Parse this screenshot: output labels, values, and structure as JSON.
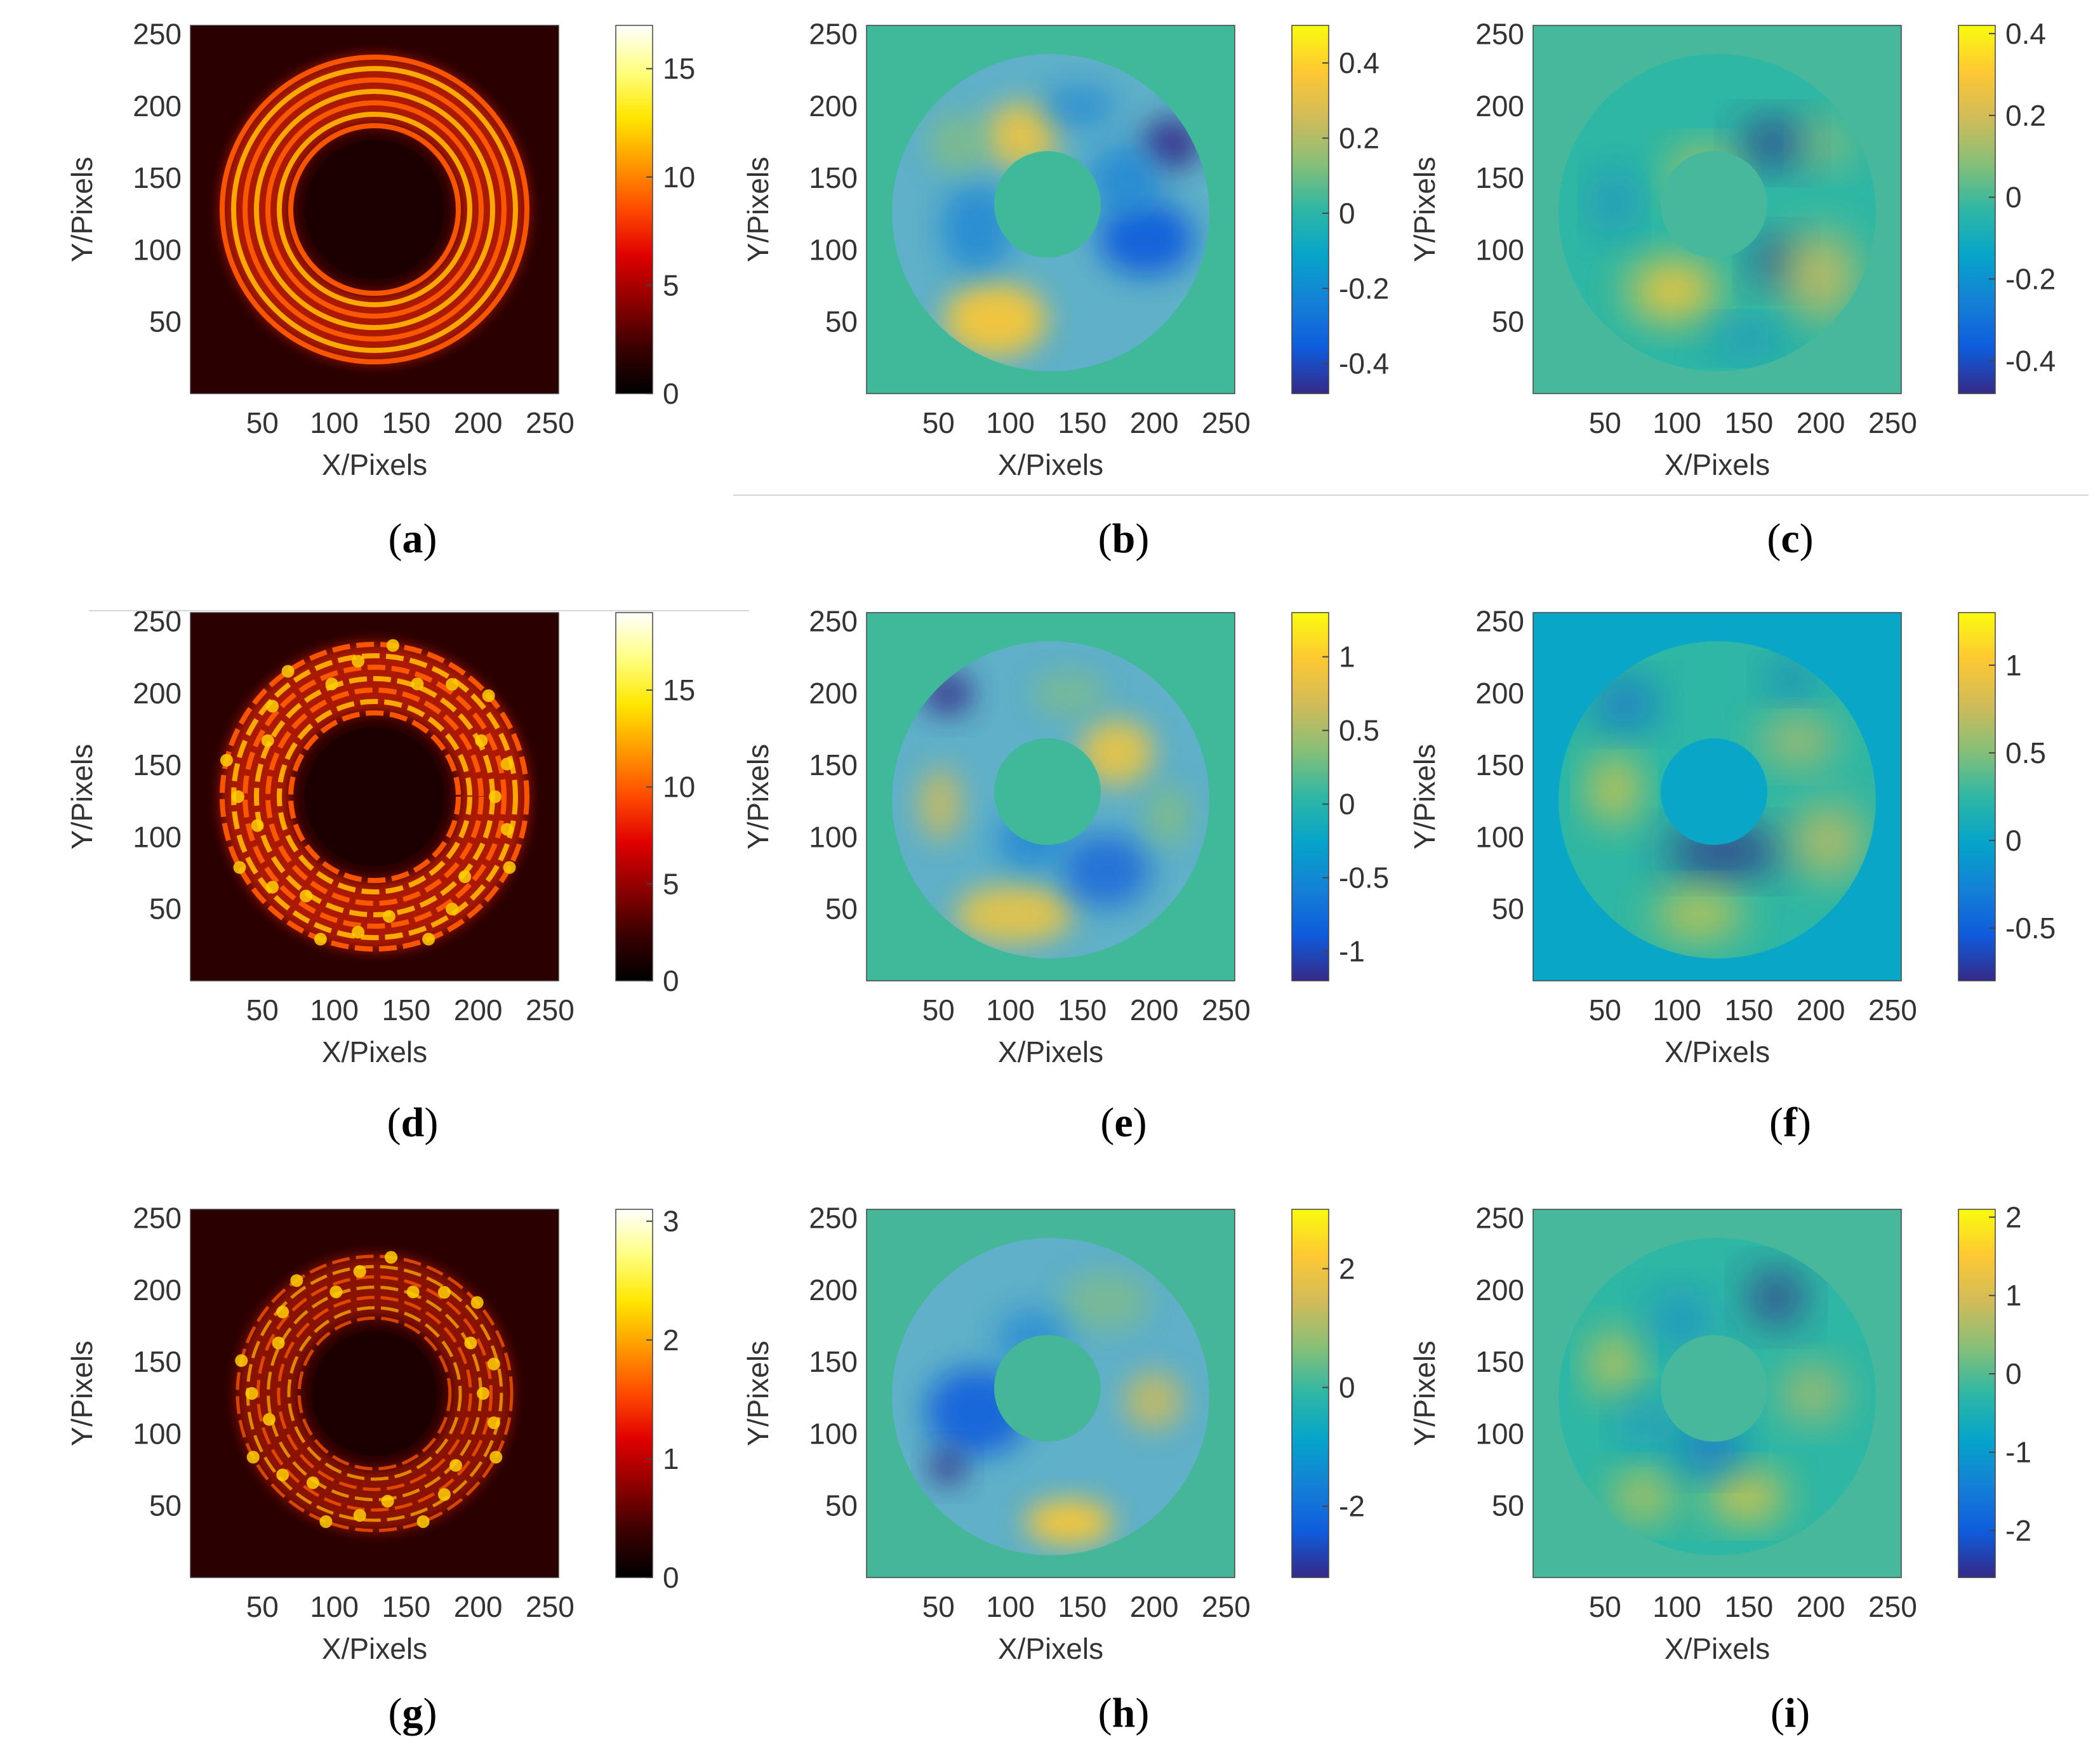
{
  "figure": {
    "axis_labels": {
      "x": "X/Pixels",
      "y": "Y/Pixels"
    }
  },
  "colormaps": {
    "hot": [
      "#000000",
      "#3a0000",
      "#8e0000",
      "#e00000",
      "#ff4a00",
      "#ff9a00",
      "#ffe600",
      "#ffff80",
      "#ffffff"
    ],
    "parula": [
      "#352a87",
      "#0f5cdd",
      "#1481d6",
      "#06a4ca",
      "#2eb7a4",
      "#87bf77",
      "#d1bb59",
      "#fec832",
      "#f9fb0e"
    ]
  },
  "chart_data": [
    {
      "id": "a",
      "type": "heatmap",
      "label_open": "(",
      "label_letter": "a",
      "label_close": ")",
      "pattern": "rings",
      "colormap": "hot",
      "xlabel": "X/Pixels",
      "ylabel": "Y/Pixels",
      "xlim": [
        0,
        256
      ],
      "ylim": [
        0,
        256
      ],
      "xticks": [
        "50",
        "100",
        "150",
        "200",
        "250"
      ],
      "yticks": [
        "50",
        "100",
        "150",
        "200",
        "250"
      ],
      "clim": [
        0,
        17
      ],
      "colorbar_ticks": [
        "0",
        "5",
        "10",
        "15"
      ]
    },
    {
      "id": "b",
      "type": "heatmap",
      "label_open": "(",
      "label_letter": "b",
      "label_close": ")",
      "pattern": "annulus-turbulent",
      "colormap": "parula",
      "xlabel": "X/Pixels",
      "ylabel": "Y/Pixels",
      "xlim": [
        0,
        256
      ],
      "ylim": [
        0,
        256
      ],
      "xticks": [
        "50",
        "100",
        "150",
        "200",
        "250"
      ],
      "yticks": [
        "50",
        "100",
        "150",
        "200",
        "250"
      ],
      "clim": [
        -0.48,
        0.5
      ],
      "colorbar_ticks": [
        "-0.4",
        "-0.2",
        "0",
        "0.2",
        "0.4"
      ]
    },
    {
      "id": "c",
      "type": "heatmap",
      "label_open": "(",
      "label_letter": "c",
      "label_close": ")",
      "pattern": "annulus-smooth",
      "colormap": "parula",
      "xlabel": "X/Pixels",
      "ylabel": "Y/Pixels",
      "xlim": [
        0,
        256
      ],
      "ylim": [
        0,
        256
      ],
      "xticks": [
        "50",
        "100",
        "150",
        "200",
        "250"
      ],
      "yticks": [
        "50",
        "100",
        "150",
        "200",
        "250"
      ],
      "clim": [
        -0.48,
        0.42
      ],
      "colorbar_ticks": [
        "-0.4",
        "-0.2",
        "0",
        "0.2",
        "0.4"
      ]
    },
    {
      "id": "d",
      "type": "heatmap",
      "label_open": "(",
      "label_letter": "d",
      "label_close": ")",
      "pattern": "rings",
      "colormap": "hot",
      "xlabel": "X/Pixels",
      "ylabel": "Y/Pixels",
      "xlim": [
        0,
        256
      ],
      "ylim": [
        0,
        256
      ],
      "xticks": [
        "50",
        "100",
        "150",
        "200",
        "250"
      ],
      "yticks": [
        "50",
        "100",
        "150",
        "200",
        "250"
      ],
      "clim": [
        0,
        19
      ],
      "colorbar_ticks": [
        "0",
        "5",
        "10",
        "15"
      ]
    },
    {
      "id": "e",
      "type": "heatmap",
      "label_open": "(",
      "label_letter": "e",
      "label_close": ")",
      "pattern": "annulus-turbulent",
      "colormap": "parula",
      "xlabel": "X/Pixels",
      "ylabel": "Y/Pixels",
      "xlim": [
        0,
        256
      ],
      "ylim": [
        0,
        256
      ],
      "xticks": [
        "50",
        "100",
        "150",
        "200",
        "250"
      ],
      "yticks": [
        "50",
        "100",
        "150",
        "200",
        "250"
      ],
      "clim": [
        -1.2,
        1.3
      ],
      "colorbar_ticks": [
        "-1",
        "-0.5",
        "0",
        "0.5",
        "1"
      ]
    },
    {
      "id": "f",
      "type": "heatmap",
      "label_open": "(",
      "label_letter": "f",
      "label_close": ")",
      "pattern": "annulus-smooth",
      "colormap": "parula",
      "xlabel": "X/Pixels",
      "ylabel": "Y/Pixels",
      "xlim": [
        0,
        256
      ],
      "ylim": [
        0,
        256
      ],
      "xticks": [
        "50",
        "100",
        "150",
        "200",
        "250"
      ],
      "yticks": [
        "50",
        "100",
        "150",
        "200",
        "250"
      ],
      "clim": [
        -0.8,
        1.3
      ],
      "colorbar_ticks": [
        "-0.5",
        "0",
        "0.5",
        "1"
      ]
    },
    {
      "id": "g",
      "type": "heatmap",
      "label_open": "(",
      "label_letter": "g",
      "label_close": ")",
      "pattern": "rings",
      "colormap": "hot",
      "xlabel": "X/Pixels",
      "ylabel": "Y/Pixels",
      "xlim": [
        0,
        256
      ],
      "ylim": [
        0,
        256
      ],
      "xticks": [
        "50",
        "100",
        "150",
        "200",
        "250"
      ],
      "yticks": [
        "50",
        "100",
        "150",
        "200",
        "250"
      ],
      "clim": [
        0,
        3.1
      ],
      "colorbar_ticks": [
        "0",
        "1",
        "2",
        "3"
      ]
    },
    {
      "id": "h",
      "type": "heatmap",
      "label_open": "(",
      "label_letter": "h",
      "label_close": ")",
      "pattern": "annulus-turbulent",
      "colormap": "parula",
      "xlabel": "X/Pixels",
      "ylabel": "Y/Pixels",
      "xlim": [
        0,
        256
      ],
      "ylim": [
        0,
        256
      ],
      "xticks": [
        "50",
        "100",
        "150",
        "200",
        "250"
      ],
      "yticks": [
        "50",
        "100",
        "150",
        "200",
        "250"
      ],
      "clim": [
        -3.2,
        3.0
      ],
      "colorbar_ticks": [
        "-2",
        "0",
        "2"
      ]
    },
    {
      "id": "i",
      "type": "heatmap",
      "label_open": "(",
      "label_letter": "i",
      "label_close": ")",
      "pattern": "annulus-smooth",
      "colormap": "parula",
      "xlabel": "X/Pixels",
      "ylabel": "Y/Pixels",
      "xlim": [
        0,
        256
      ],
      "ylim": [
        0,
        256
      ],
      "xticks": [
        "50",
        "100",
        "150",
        "200",
        "250"
      ],
      "yticks": [
        "50",
        "100",
        "150",
        "200",
        "250"
      ],
      "clim": [
        -2.6,
        2.1
      ],
      "colorbar_ticks": [
        "-2",
        "-1",
        "0",
        "1",
        "2"
      ]
    }
  ]
}
